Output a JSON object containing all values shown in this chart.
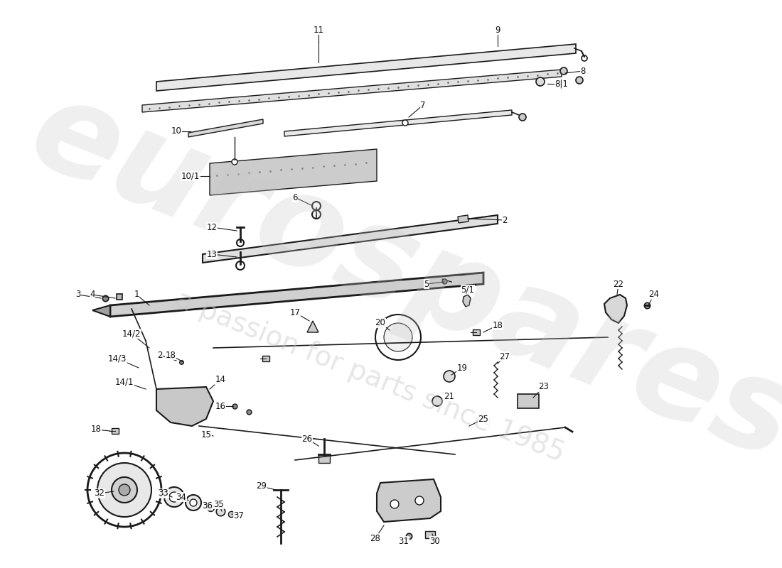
{
  "bg_color": "#ffffff",
  "watermark1": "eurospares",
  "watermark2": "a passion for parts since 1985",
  "wm_color": "#c8c8c8",
  "wm_alpha": 0.5,
  "line_color": "#1a1a1a",
  "label_color": "#111111"
}
